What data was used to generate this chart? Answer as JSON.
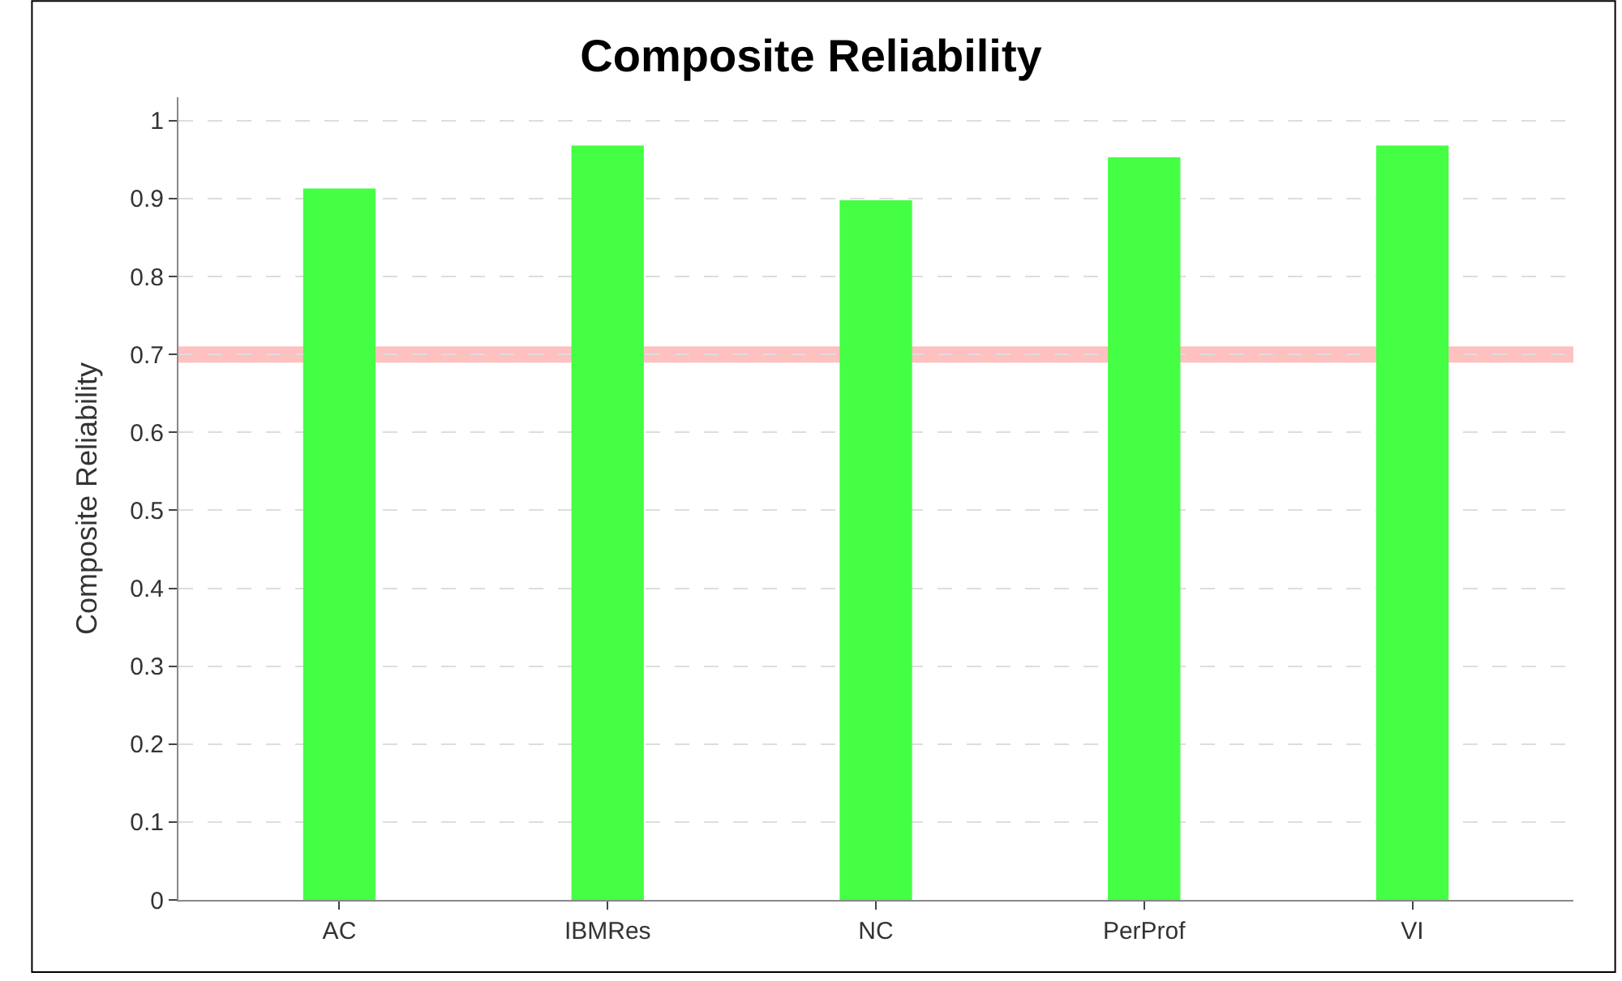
{
  "chart_data": {
    "type": "bar",
    "title": "Composite Reliability",
    "ylabel": "Composite Reliability",
    "categories": [
      "AC",
      "IBMRes",
      "NC",
      "PerProf",
      "VI"
    ],
    "values": [
      0.913,
      0.968,
      0.898,
      0.953,
      0.968
    ],
    "color": "#44ff44",
    "ylim": [
      0,
      1.03
    ],
    "yticks": [
      0,
      0.1,
      0.2,
      0.3,
      0.4,
      0.5,
      0.6,
      0.7,
      0.8,
      0.9,
      1
    ],
    "ref_lines": [
      {
        "axis": "y",
        "value": 0.7,
        "color": "#ffc0c0"
      }
    ],
    "grid": "y"
  }
}
